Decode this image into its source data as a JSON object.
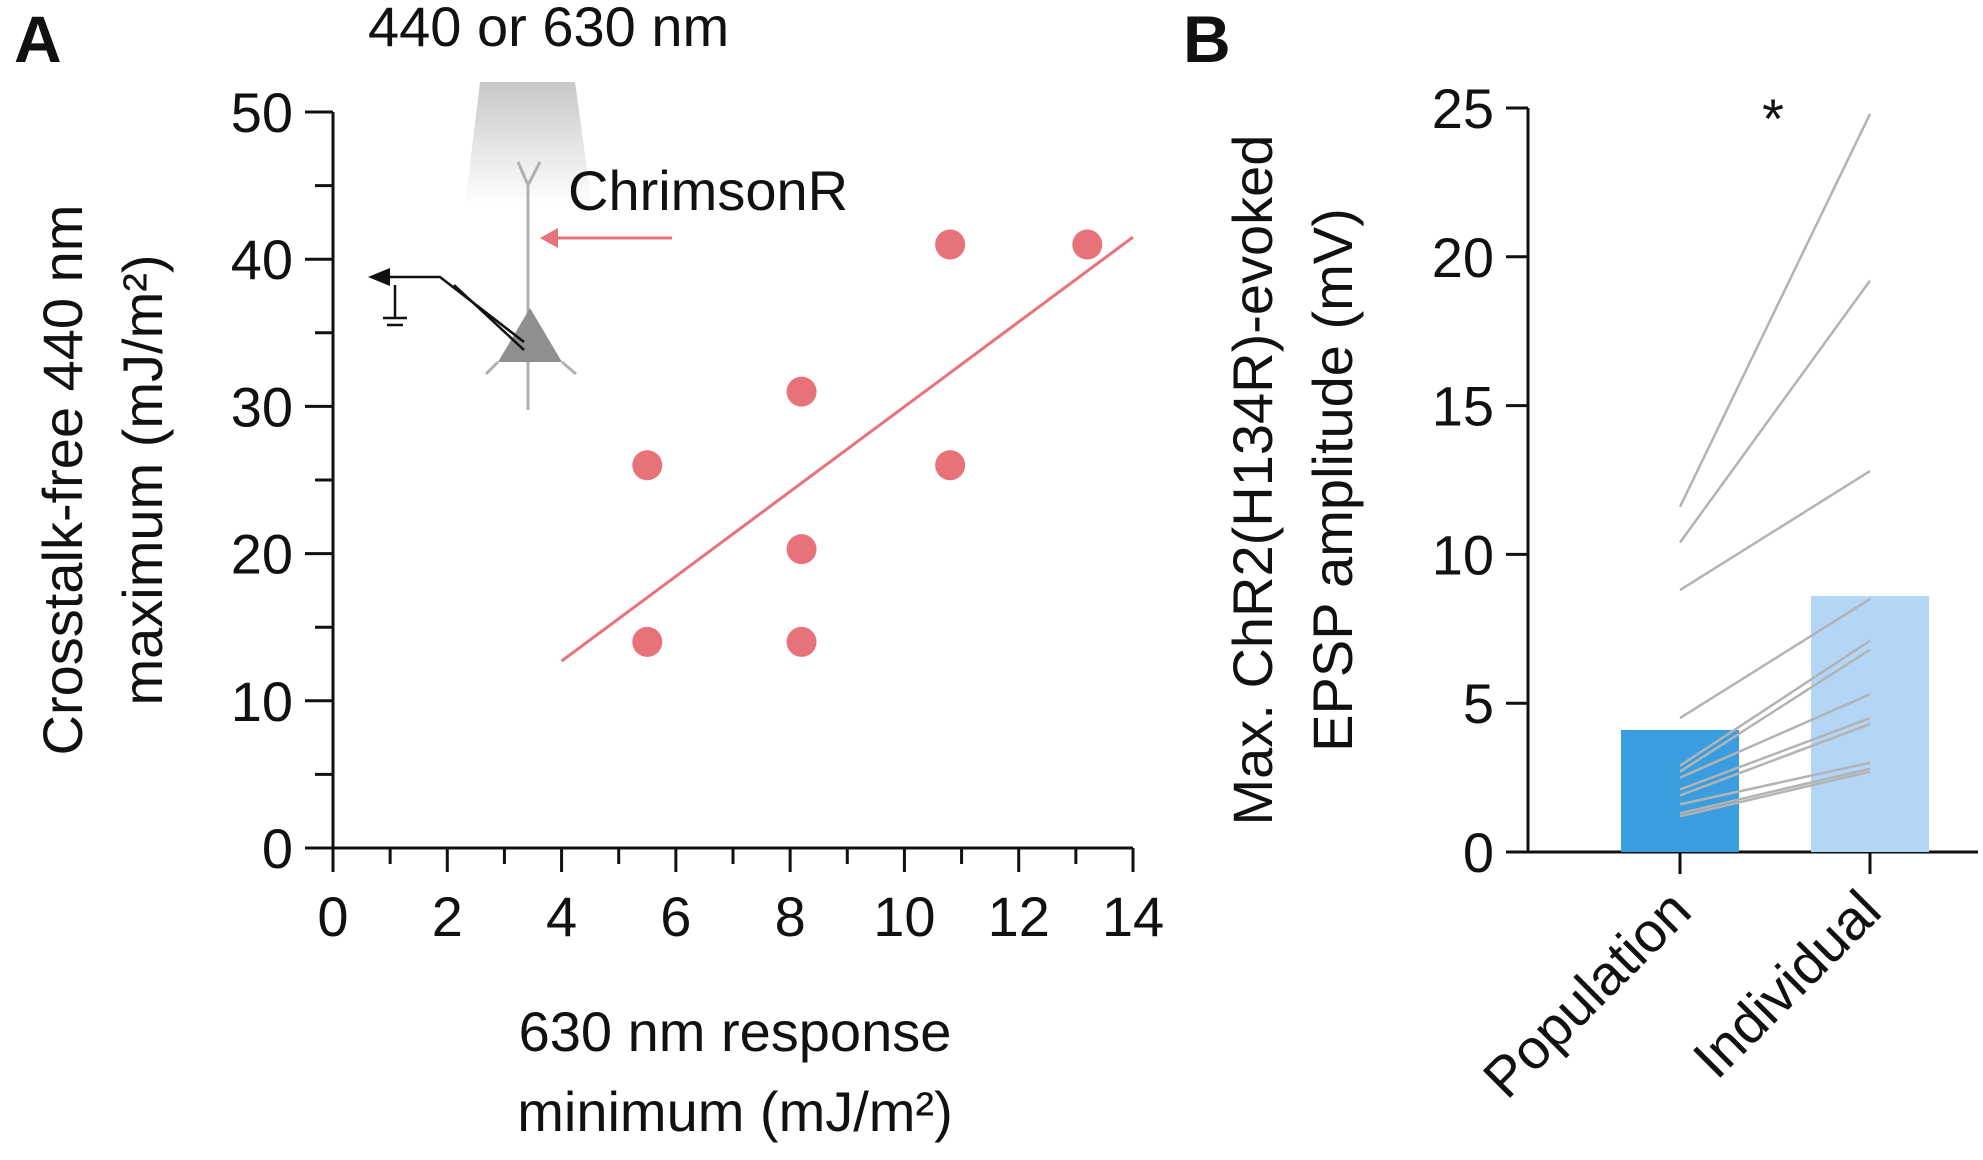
{
  "panels": {
    "a": "A",
    "b": "B"
  },
  "colors": {
    "scatter": "#e8727a",
    "population_bar": "#3a9de0",
    "individual_bar": "#b3d6f7",
    "paired_lines": "#b3b3b3",
    "inset_gray": "#9a9a9a"
  },
  "inset": {
    "light_label": "440 or 630 nm",
    "opsin_label": "ChrimsonR"
  },
  "chart_data": [
    {
      "panel": "A",
      "type": "scatter",
      "title": "",
      "xlabel": [
        "630 nm response",
        "minimum (mJ/m²)"
      ],
      "ylabel": [
        "Crosstalk-free 440 nm",
        "maximum (mJ/m²)"
      ],
      "xlim": [
        0,
        14
      ],
      "ylim": [
        0,
        50
      ],
      "xticks": [
        0,
        2,
        4,
        6,
        8,
        10,
        12,
        14
      ],
      "yticks": [
        0,
        10,
        20,
        30,
        40,
        50
      ],
      "points": [
        {
          "x": 5.5,
          "y": 14
        },
        {
          "x": 5.5,
          "y": 26
        },
        {
          "x": 8.2,
          "y": 14
        },
        {
          "x": 8.2,
          "y": 20.3
        },
        {
          "x": 8.2,
          "y": 31
        },
        {
          "x": 10.8,
          "y": 26
        },
        {
          "x": 10.8,
          "y": 41
        },
        {
          "x": 13.2,
          "y": 41
        }
      ],
      "fit_line": {
        "x": [
          4.0,
          14.0
        ],
        "y": [
          12.7,
          41.5
        ]
      }
    },
    {
      "panel": "B",
      "type": "bar",
      "title": "",
      "xlabel": "",
      "ylabel": [
        "Max. ChR2(H134R)-evoked",
        "EPSP amplitude (mV)"
      ],
      "ylim": [
        0,
        25
      ],
      "yticks": [
        0,
        5,
        10,
        15,
        20,
        25
      ],
      "categories": [
        "Population",
        "Individual"
      ],
      "values": [
        4.1,
        8.6
      ],
      "significance": "*",
      "paired": [
        [
          11.6,
          24.8
        ],
        [
          10.4,
          19.2
        ],
        [
          8.8,
          12.8
        ],
        [
          4.5,
          8.5
        ],
        [
          2.9,
          7.1
        ],
        [
          2.7,
          6.8
        ],
        [
          2.5,
          5.3
        ],
        [
          2.1,
          4.5
        ],
        [
          1.9,
          4.3
        ],
        [
          1.6,
          3.0
        ],
        [
          1.3,
          2.8
        ],
        [
          1.2,
          2.7
        ]
      ]
    }
  ]
}
